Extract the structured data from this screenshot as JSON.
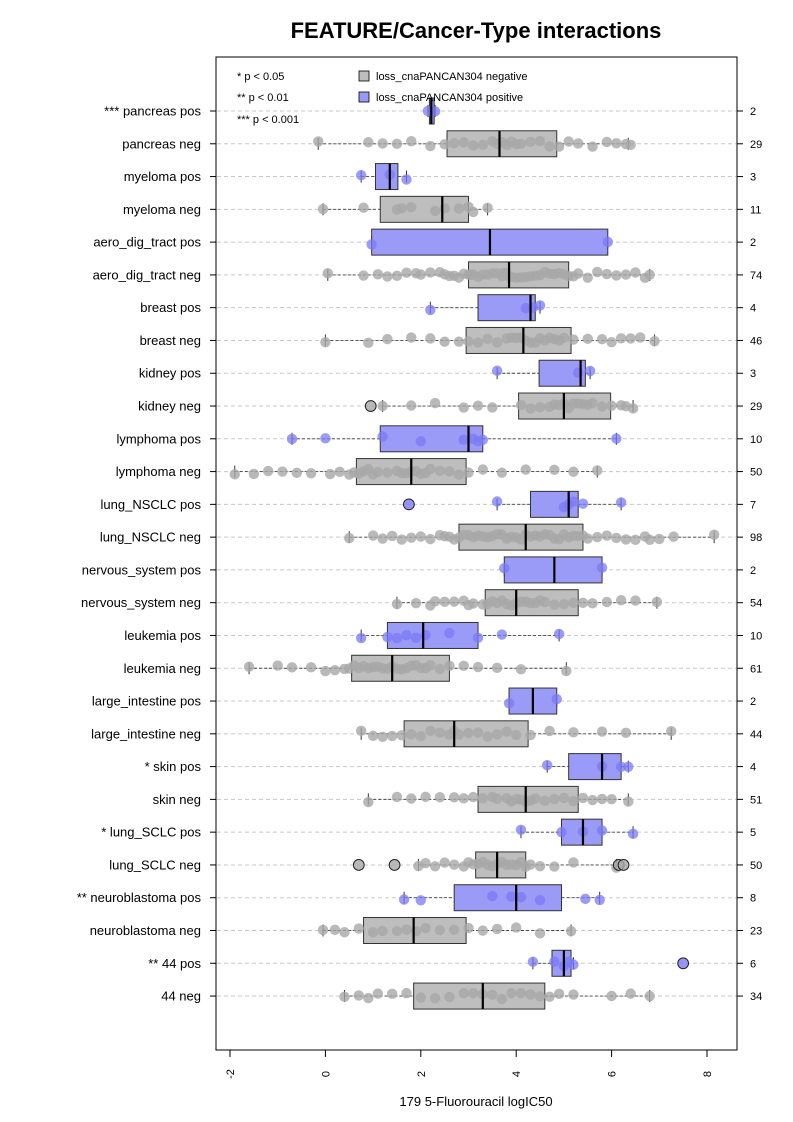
{
  "chart_data": {
    "type": "boxplot",
    "title": "FEATURE/Cancer-Type interactions",
    "xlabel": "179 5-Fluorouracil logIC50",
    "xlim": [
      -2.3,
      8.6
    ],
    "xticks": [
      -2,
      0,
      2,
      4,
      6,
      8
    ],
    "xtick_labels": [
      "-2",
      "0",
      "2",
      "4",
      "6",
      "8"
    ],
    "significance_legend": [
      "* p < 0.05",
      "** p < 0.01",
      "*** p < 0.001"
    ],
    "legend": [
      {
        "label": "loss_cnaPANCAN304 negative",
        "color": "#bebebe"
      },
      {
        "label": "loss_cnaPANCAN304 positive",
        "color": "#9a9af7"
      }
    ],
    "colors": {
      "neg_box": "#bebebe",
      "pos_box": "#9a9af7",
      "neg_point": "#a8a8a8",
      "pos_point": "#7a7af5"
    },
    "groups": [
      {
        "label": "*** pancreas pos",
        "status": "pos",
        "n": "2",
        "q1": 2.18,
        "median": 2.22,
        "q3": 2.28,
        "wlo": 2.15,
        "whi": 2.3,
        "points": [
          2.15,
          2.3
        ],
        "outliers": []
      },
      {
        "label": "pancreas neg",
        "status": "neg",
        "n": "29",
        "q1": 2.55,
        "median": 3.65,
        "q3": 4.85,
        "wlo": -0.15,
        "whi": 6.35,
        "points": [
          -0.15,
          0.9,
          1.2,
          1.5,
          1.8,
          2.2,
          2.5,
          2.7,
          2.9,
          3.1,
          3.3,
          3.5,
          3.6,
          3.7,
          3.8,
          3.9,
          4.0,
          4.1,
          4.3,
          4.5,
          4.7,
          4.9,
          5.1,
          5.3,
          5.6,
          5.9,
          6.1,
          6.3,
          6.4
        ],
        "outliers": []
      },
      {
        "label": "myeloma pos",
        "status": "pos",
        "n": "3",
        "q1": 1.05,
        "median": 1.35,
        "q3": 1.52,
        "wlo": 0.75,
        "whi": 1.7,
        "points": [
          0.75,
          1.35,
          1.7
        ],
        "outliers": []
      },
      {
        "label": "myeloma neg",
        "status": "neg",
        "n": "11",
        "q1": 1.15,
        "median": 2.45,
        "q3": 3.0,
        "wlo": -0.05,
        "whi": 3.4,
        "points": [
          -0.05,
          0.8,
          1.5,
          1.6,
          1.8,
          2.3,
          2.5,
          2.8,
          3.0,
          3.1,
          3.4
        ],
        "outliers": []
      },
      {
        "label": "aero_dig_tract pos",
        "status": "pos",
        "n": "2",
        "q1": 0.97,
        "median": 3.45,
        "q3": 5.92,
        "wlo": 0.97,
        "whi": 5.92,
        "points": [
          0.97,
          5.92
        ],
        "outliers": []
      },
      {
        "label": "aero_dig_tract neg",
        "status": "neg",
        "n": "74",
        "q1": 3.0,
        "median": 3.85,
        "q3": 5.1,
        "wlo": 0.05,
        "whi": 6.8,
        "points": [
          0.05,
          0.8,
          1.1,
          1.3,
          1.5,
          1.7,
          1.9,
          2.0,
          2.2,
          2.4,
          2.5,
          2.6,
          2.7,
          2.8,
          2.9,
          3.0,
          3.05,
          3.1,
          3.2,
          3.3,
          3.4,
          3.5,
          3.6,
          3.7,
          3.75,
          3.8,
          3.85,
          3.9,
          4.0,
          4.1,
          4.2,
          4.3,
          4.4,
          4.5,
          4.6,
          4.7,
          4.8,
          4.9,
          5.0,
          5.1,
          5.2,
          5.3,
          5.5,
          5.7,
          5.9,
          6.1,
          6.3,
          6.5,
          6.7,
          6.8
        ],
        "outliers": []
      },
      {
        "label": "breast pos",
        "status": "pos",
        "n": "4",
        "q1": 3.2,
        "median": 4.3,
        "q3": 4.4,
        "wlo": 2.2,
        "whi": 4.5,
        "points": [
          2.2,
          4.2,
          4.35,
          4.5
        ],
        "outliers": []
      },
      {
        "label": "breast neg",
        "status": "neg",
        "n": "46",
        "q1": 2.95,
        "median": 4.15,
        "q3": 5.15,
        "wlo": 0.0,
        "whi": 6.9,
        "points": [
          0.0,
          0.9,
          1.3,
          1.8,
          2.2,
          2.5,
          2.8,
          3.0,
          3.2,
          3.4,
          3.6,
          3.8,
          3.9,
          4.0,
          4.1,
          4.2,
          4.3,
          4.4,
          4.5,
          4.6,
          4.7,
          4.8,
          4.9,
          5.0,
          5.2,
          5.5,
          5.8,
          6.0,
          6.2,
          6.4,
          6.6,
          6.9
        ],
        "outliers": []
      },
      {
        "label": "kidney pos",
        "status": "pos",
        "n": "3",
        "q1": 4.48,
        "median": 5.35,
        "q3": 5.45,
        "wlo": 3.6,
        "whi": 5.55,
        "points": [
          3.6,
          5.3,
          5.55
        ],
        "outliers": []
      },
      {
        "label": "kidney neg",
        "status": "neg",
        "n": "29",
        "q1": 4.05,
        "median": 5.0,
        "q3": 5.98,
        "wlo": 1.2,
        "whi": 6.45,
        "points": [
          1.2,
          1.8,
          2.3,
          2.9,
          3.2,
          3.5,
          4.1,
          4.3,
          4.5,
          4.7,
          4.8,
          4.9,
          5.0,
          5.1,
          5.2,
          5.3,
          5.4,
          5.5,
          5.6,
          5.8,
          6.0,
          6.2,
          6.3,
          6.45
        ],
        "outliers": [
          0.95
        ]
      },
      {
        "label": "lymphoma pos",
        "status": "pos",
        "n": "10",
        "q1": 1.15,
        "median": 3.0,
        "q3": 3.3,
        "wlo": -0.7,
        "whi": 6.1,
        "points": [
          -0.7,
          0.0,
          1.2,
          2.0,
          2.9,
          3.1,
          3.2,
          3.3,
          6.1
        ],
        "outliers": []
      },
      {
        "label": "lymphoma neg",
        "status": "neg",
        "n": "50",
        "q1": 0.65,
        "median": 1.8,
        "q3": 2.95,
        "wlo": -1.9,
        "whi": 5.7,
        "points": [
          -1.9,
          -1.5,
          -1.2,
          -0.9,
          -0.6,
          -0.3,
          0.1,
          0.3,
          0.5,
          0.6,
          0.7,
          0.8,
          0.9,
          1.0,
          1.1,
          1.3,
          1.5,
          1.6,
          1.7,
          1.8,
          1.9,
          2.0,
          2.1,
          2.2,
          2.4,
          2.6,
          2.8,
          3.0,
          3.3,
          3.7,
          4.2,
          4.8,
          5.2,
          5.7
        ],
        "outliers": []
      },
      {
        "label": "lung_NSCLC pos",
        "status": "pos",
        "n": "7",
        "q1": 4.3,
        "median": 5.1,
        "q3": 5.3,
        "wlo": 3.6,
        "whi": 6.2,
        "points": [
          3.6,
          5.0,
          5.1,
          5.2,
          5.4,
          6.2
        ],
        "outliers": [
          1.75
        ]
      },
      {
        "label": "lung_NSCLC neg",
        "status": "neg",
        "n": "98",
        "q1": 2.8,
        "median": 4.2,
        "q3": 5.4,
        "wlo": 0.5,
        "whi": 8.15,
        "points": [
          0.5,
          1.0,
          1.2,
          1.4,
          1.6,
          1.8,
          2.0,
          2.2,
          2.4,
          2.5,
          2.6,
          2.7,
          2.8,
          2.9,
          3.0,
          3.1,
          3.2,
          3.3,
          3.4,
          3.5,
          3.6,
          3.7,
          3.8,
          3.9,
          4.0,
          4.1,
          4.2,
          4.3,
          4.4,
          4.5,
          4.6,
          4.7,
          4.8,
          4.9,
          5.0,
          5.1,
          5.2,
          5.3,
          5.4,
          5.5,
          5.7,
          5.9,
          6.1,
          6.3,
          6.5,
          6.7,
          6.8,
          7.0,
          7.3,
          8.15
        ],
        "outliers": []
      },
      {
        "label": "nervous_system pos",
        "status": "pos",
        "n": "2",
        "q1": 3.75,
        "median": 4.8,
        "q3": 5.8,
        "wlo": 3.75,
        "whi": 5.8,
        "points": [
          3.75,
          5.8
        ],
        "outliers": []
      },
      {
        "label": "nervous_system neg",
        "status": "neg",
        "n": "54",
        "q1": 3.35,
        "median": 4.0,
        "q3": 5.3,
        "wlo": 1.5,
        "whi": 6.95,
        "points": [
          1.5,
          1.9,
          2.2,
          2.3,
          2.5,
          2.7,
          2.9,
          3.0,
          3.1,
          3.3,
          3.4,
          3.5,
          3.6,
          3.7,
          3.8,
          3.9,
          4.0,
          4.1,
          4.2,
          4.3,
          4.4,
          4.5,
          4.6,
          4.8,
          5.0,
          5.2,
          5.4,
          5.6,
          5.9,
          6.2,
          6.5,
          6.95
        ],
        "outliers": []
      },
      {
        "label": "leukemia pos",
        "status": "pos",
        "n": "10",
        "q1": 1.3,
        "median": 2.05,
        "q3": 3.2,
        "wlo": 0.75,
        "whi": 4.9,
        "points": [
          0.75,
          1.3,
          1.5,
          1.7,
          1.9,
          2.1,
          2.6,
          3.2,
          3.7,
          4.9
        ],
        "outliers": []
      },
      {
        "label": "leukemia neg",
        "status": "neg",
        "n": "61",
        "q1": 0.55,
        "median": 1.4,
        "q3": 2.6,
        "wlo": -1.6,
        "whi": 5.05,
        "points": [
          -1.6,
          -1.0,
          -0.7,
          -0.3,
          0.0,
          0.2,
          0.4,
          0.5,
          0.6,
          0.7,
          0.8,
          0.9,
          1.0,
          1.1,
          1.2,
          1.3,
          1.4,
          1.5,
          1.6,
          1.7,
          1.8,
          1.9,
          2.0,
          2.1,
          2.2,
          2.4,
          2.6,
          2.9,
          3.2,
          3.6,
          4.1,
          5.05
        ],
        "outliers": []
      },
      {
        "label": "large_intestine pos",
        "status": "pos",
        "n": "2",
        "q1": 3.85,
        "median": 4.35,
        "q3": 4.85,
        "wlo": 3.85,
        "whi": 4.85,
        "points": [
          3.85,
          4.85
        ],
        "outliers": []
      },
      {
        "label": "large_intestine neg",
        "status": "neg",
        "n": "44",
        "q1": 1.65,
        "median": 2.7,
        "q3": 4.25,
        "wlo": 0.75,
        "whi": 7.25,
        "points": [
          0.75,
          1.0,
          1.2,
          1.4,
          1.6,
          1.8,
          2.0,
          2.2,
          2.4,
          2.6,
          2.7,
          2.8,
          3.0,
          3.2,
          3.4,
          3.6,
          3.8,
          4.0,
          4.3,
          4.7,
          5.2,
          5.8,
          6.3,
          7.25
        ],
        "outliers": []
      },
      {
        "label": "* skin pos",
        "status": "pos",
        "n": "4",
        "q1": 5.1,
        "median": 5.8,
        "q3": 6.2,
        "wlo": 4.65,
        "whi": 6.35,
        "points": [
          4.65,
          5.8,
          6.2,
          6.35
        ],
        "outliers": []
      },
      {
        "label": "skin neg",
        "status": "neg",
        "n": "51",
        "q1": 3.2,
        "median": 4.2,
        "q3": 5.3,
        "wlo": 0.9,
        "whi": 6.35,
        "points": [
          0.9,
          1.5,
          1.8,
          2.1,
          2.4,
          2.7,
          2.9,
          3.1,
          3.3,
          3.5,
          3.6,
          3.8,
          3.9,
          4.0,
          4.1,
          4.2,
          4.3,
          4.4,
          4.6,
          4.8,
          5.0,
          5.2,
          5.4,
          5.6,
          5.8,
          6.0,
          6.35
        ],
        "outliers": []
      },
      {
        "label": "* lung_SCLC pos",
        "status": "pos",
        "n": "5",
        "q1": 4.95,
        "median": 5.4,
        "q3": 5.8,
        "wlo": 4.1,
        "whi": 6.45,
        "points": [
          4.1,
          4.95,
          5.4,
          5.8,
          6.45
        ],
        "outliers": []
      },
      {
        "label": "lung_SCLC neg",
        "status": "neg",
        "n": "50",
        "q1": 3.15,
        "median": 3.6,
        "q3": 4.2,
        "wlo": 1.95,
        "whi": 6.1,
        "points": [
          1.95,
          2.1,
          2.3,
          2.5,
          2.7,
          2.9,
          3.0,
          3.1,
          3.2,
          3.3,
          3.4,
          3.5,
          3.6,
          3.7,
          3.8,
          3.9,
          4.0,
          4.1,
          4.2,
          4.3,
          4.5,
          4.8,
          5.2,
          6.1
        ],
        "outliers": [
          0.7,
          1.45,
          6.15,
          6.25
        ]
      },
      {
        "label": "** neuroblastoma pos",
        "status": "pos",
        "n": "8",
        "q1": 2.7,
        "median": 4.0,
        "q3": 4.95,
        "wlo": 1.65,
        "whi": 5.75,
        "points": [
          1.65,
          2.0,
          3.5,
          3.9,
          4.1,
          4.5,
          5.45,
          5.75
        ],
        "outliers": []
      },
      {
        "label": "neuroblastoma neg",
        "status": "neg",
        "n": "23",
        "q1": 0.8,
        "median": 1.85,
        "q3": 2.95,
        "wlo": -0.05,
        "whi": 5.15,
        "points": [
          -0.05,
          0.2,
          0.4,
          0.7,
          1.0,
          1.2,
          1.5,
          1.7,
          1.9,
          2.1,
          2.4,
          2.7,
          3.0,
          3.3,
          3.6,
          4.0,
          4.5,
          5.15
        ],
        "outliers": []
      },
      {
        "label": "** 44 pos",
        "status": "pos",
        "n": "6",
        "q1": 4.75,
        "median": 5.0,
        "q3": 5.15,
        "wlo": 4.35,
        "whi": 5.2,
        "points": [
          4.35,
          4.8,
          5.0,
          5.1,
          5.2
        ],
        "outliers": [
          7.5
        ]
      },
      {
        "label": "44 neg",
        "status": "neg",
        "n": "34",
        "q1": 1.85,
        "median": 3.3,
        "q3": 4.6,
        "wlo": 0.4,
        "whi": 6.8,
        "points": [
          0.4,
          0.7,
          0.9,
          1.1,
          1.4,
          1.7,
          2.0,
          2.3,
          2.6,
          2.9,
          3.1,
          3.3,
          3.5,
          3.7,
          3.9,
          4.1,
          4.3,
          4.5,
          4.7,
          4.9,
          5.2,
          6.0,
          6.4,
          6.8
        ],
        "outliers": []
      }
    ]
  }
}
